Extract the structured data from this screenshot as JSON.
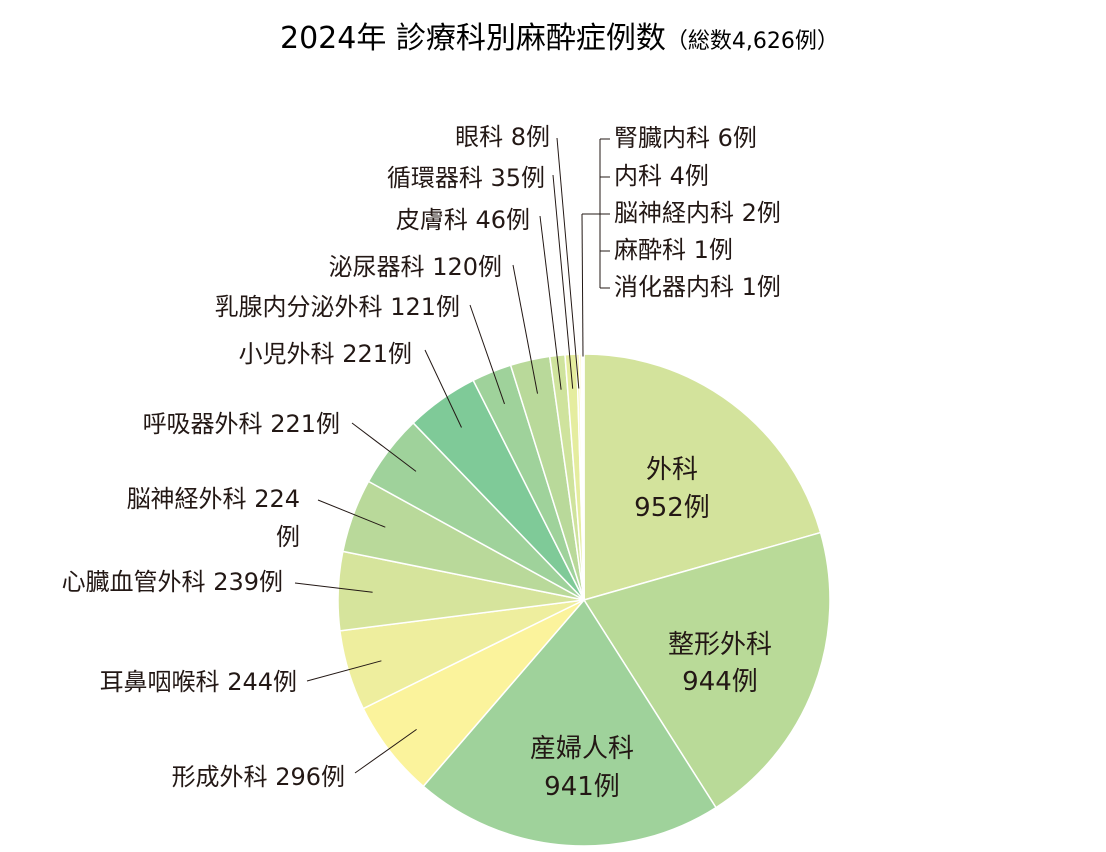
{
  "chart_data": {
    "type": "pie",
    "title": "2024年 診療科別麻酔症例数",
    "subtitle": "（総数4,626例）",
    "total": 4626,
    "unit": "例",
    "slices": [
      {
        "name": "外科",
        "value": 952,
        "label": "952例",
        "color": "#d3e39c",
        "pos": "inside"
      },
      {
        "name": "整形外科",
        "value": 944,
        "label": "944例",
        "color": "#b9da98",
        "pos": "inside"
      },
      {
        "name": "産婦人科",
        "value": 941,
        "label": "941例",
        "color": "#9fd29b",
        "pos": "inside"
      },
      {
        "name": "形成外科",
        "value": 296,
        "label": "形成外科 296例",
        "color": "#fbf39c",
        "pos": "outside"
      },
      {
        "name": "耳鼻咽喉科",
        "value": 244,
        "label": "耳鼻咽喉科 244例",
        "color": "#eeee9e",
        "pos": "outside"
      },
      {
        "name": "心臓血管外科",
        "value": 239,
        "label": "心臓血管外科 239例",
        "color": "#d6e49c",
        "pos": "outside"
      },
      {
        "name": "脳神経外科",
        "value": 224,
        "label": "脳神経外科 224例",
        "color": "#b9d99a",
        "pos": "outside"
      },
      {
        "name": "呼吸器外科",
        "value": 221,
        "label": "呼吸器外科 221例",
        "color": "#9fd29b",
        "pos": "outside"
      },
      {
        "name": "小児外科",
        "value": 221,
        "label": "小児外科 221例",
        "color": "#7fca98",
        "pos": "outside"
      },
      {
        "name": "乳腺内分泌外科",
        "value": 121,
        "label": "乳腺内分泌外科 121例",
        "color": "#9fd29b",
        "pos": "outside"
      },
      {
        "name": "泌尿器科",
        "value": 120,
        "label": "泌尿器科 120例",
        "color": "#b9d99a",
        "pos": "outside"
      },
      {
        "name": "皮膚科",
        "value": 46,
        "label": "皮膚科 46例",
        "color": "#cfe39d",
        "pos": "outside"
      },
      {
        "name": "循環器科",
        "value": 35,
        "label": "循環器科 35例",
        "color": "#e5ed9f",
        "pos": "outside"
      },
      {
        "name": "眼科",
        "value": 8,
        "label": "眼科 8例",
        "color": "#f5f29c",
        "pos": "outside"
      },
      {
        "name": "腎臓内科",
        "value": 6,
        "label": "腎臓内科 6例",
        "color": "#fbf3a0",
        "pos": "outside"
      },
      {
        "name": "内科",
        "value": 4,
        "label": "内科 4例",
        "color": "#f8f0a0",
        "pos": "outside"
      },
      {
        "name": "脳神経内科",
        "value": 2,
        "label": "脳神経内科 2例",
        "color": "#f2eea0",
        "pos": "outside"
      },
      {
        "name": "麻酔科",
        "value": 1,
        "label": "麻酔科 1例",
        "color": "#eaeea0",
        "pos": "outside"
      },
      {
        "name": "消化器内科",
        "value": 1,
        "label": "消化器内科 1例",
        "color": "#e6eca0",
        "pos": "outside"
      }
    ],
    "legend": "none",
    "grid": false
  }
}
